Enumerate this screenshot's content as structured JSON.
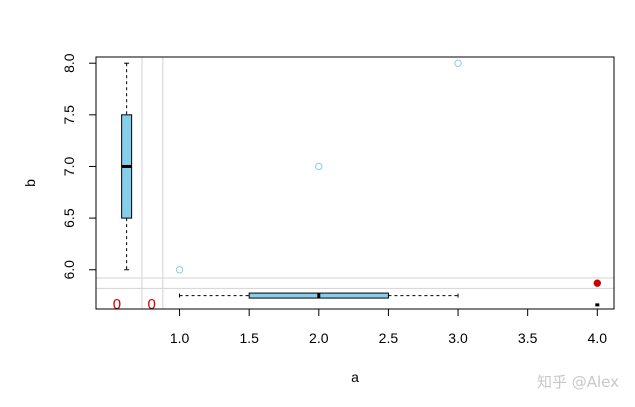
{
  "chart_data": {
    "type": "scatter",
    "title": "",
    "xlabel": "a",
    "ylabel": "b",
    "xlim": [
      0.4,
      4.12
    ],
    "ylim": [
      5.62,
      8.06
    ],
    "x_ticks": [
      "1.0",
      "1.5",
      "2.0",
      "2.5",
      "3.0",
      "3.5",
      "4.0"
    ],
    "y_ticks": [
      "6.0",
      "6.5",
      "7.0",
      "7.5",
      "8.0"
    ],
    "points": [
      {
        "x": 1,
        "y": 6
      },
      {
        "x": 2,
        "y": 7
      },
      {
        "x": 3,
        "y": 8
      }
    ],
    "highlight_point": {
      "x": 4.0,
      "y": 5.87
    },
    "small_mark": {
      "x": 4.0,
      "y": 5.66
    },
    "vertical_guides": [
      0.73,
      0.88
    ],
    "horizontal_guides": [
      5.92,
      5.82
    ],
    "y_boxplot": {
      "x": 0.62,
      "min": 6,
      "q1": 6.5,
      "median": 7,
      "q3": 7.5,
      "max": 8
    },
    "x_boxplot": {
      "y": 5.75,
      "min": 1,
      "q1": 1.5,
      "median": 2,
      "q3": 2.5,
      "max": 3
    },
    "annotations": [
      {
        "text": "0",
        "x": 0.55,
        "y": 5.67
      },
      {
        "text": "0",
        "x": 0.8,
        "y": 5.67
      }
    ],
    "colors": {
      "points": "#87ceeb",
      "box_fill": "#87ceeb",
      "guides": "#d3d3d3",
      "highlight": "#cc0000",
      "annotation": "#cc0000"
    },
    "grid": false,
    "legend": "none"
  },
  "watermark": "知乎 @Alex"
}
